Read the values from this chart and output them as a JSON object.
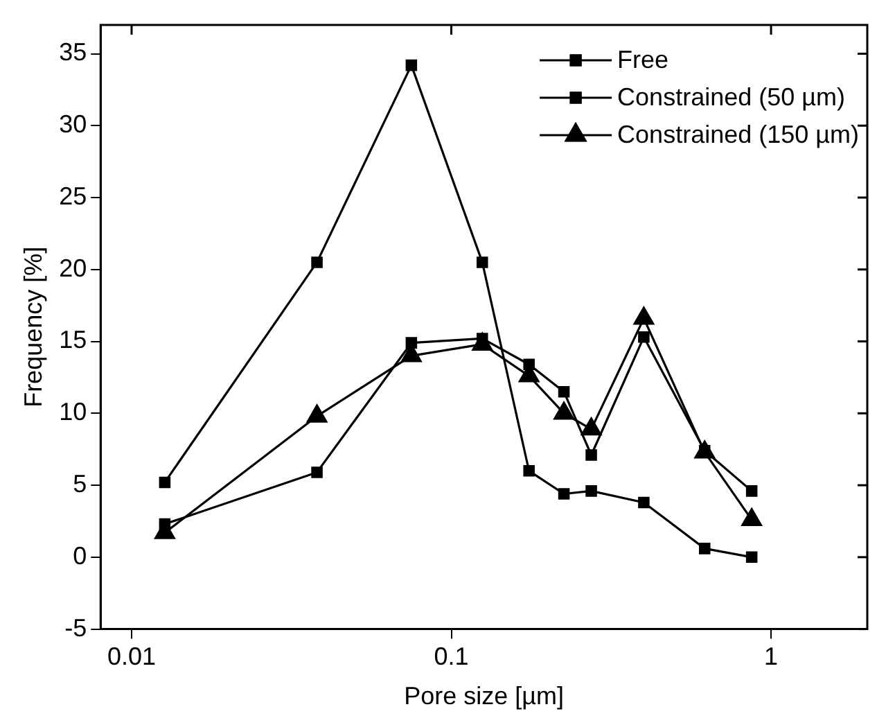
{
  "chart_data": {
    "type": "line",
    "xlabel": "Pore size [µm]",
    "ylabel": "Frequency [%]",
    "log": "x",
    "xlim": [
      0.008,
      2
    ],
    "xticks": [
      0.01,
      0.1,
      1
    ],
    "ylim": [
      -5,
      37
    ],
    "yticks": [
      -5,
      0,
      5,
      10,
      15,
      20,
      25,
      30,
      35
    ],
    "x": [
      0.0127,
      0.038,
      0.075,
      0.125,
      0.175,
      0.225,
      0.274,
      0.4,
      0.62,
      0.87
    ],
    "legend": "top right",
    "grid": false,
    "line_style": "solid",
    "series": [
      {
        "name": "Free",
        "color": "#000000",
        "marker": "square",
        "values": [
          5.2,
          20.5,
          34.2,
          20.5,
          6.0,
          4.4,
          4.6,
          3.8,
          0.6,
          0
        ]
      },
      {
        "name": "Constrained (50 µm)",
        "color": "#000000",
        "marker": "square",
        "values": [
          2.3,
          5.9,
          14.9,
          15.2,
          13.4,
          11.5,
          7.1,
          15.3,
          7.4,
          4.6
        ]
      },
      {
        "name": "Constrained (150 µm)",
        "color": "#000000",
        "marker": "triangle",
        "values": [
          1.7,
          9.8,
          14.0,
          14.8,
          12.6,
          10.0,
          8.9,
          16.6,
          7.3,
          2.6
        ]
      }
    ]
  }
}
